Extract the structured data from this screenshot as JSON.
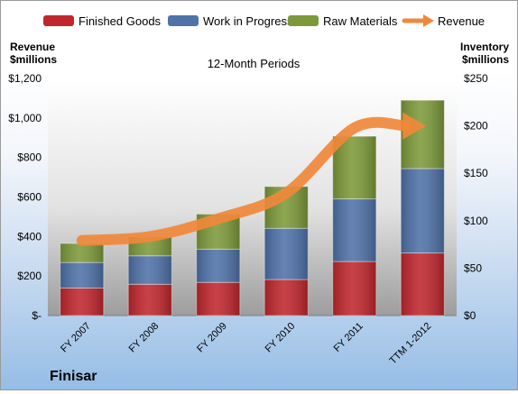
{
  "chart_data": {
    "type": "bar",
    "title": "12-Month Periods",
    "company": "Finisar",
    "y_left_label_line1": "Revenue",
    "y_left_label_line2": "$millions",
    "y_right_label_line1": "Inventory",
    "y_right_label_line2": "$millions",
    "categories": [
      "FY 2007",
      "FY 2008",
      "FY 2009",
      "FY 2010",
      "FY 2011",
      "TTM 1-2012"
    ],
    "series": [
      {
        "name": "Finished Goods",
        "kind": "stacked-bar",
        "axis": "right",
        "color": "#c0272d",
        "values": [
          29,
          33,
          35,
          38,
          57,
          66
        ]
      },
      {
        "name": "Work in Progress",
        "kind": "stacked-bar",
        "axis": "right",
        "color": "#4f72a8",
        "values": [
          27,
          30,
          35,
          54,
          66,
          89
        ]
      },
      {
        "name": "Raw Materials",
        "kind": "stacked-bar",
        "axis": "right",
        "color": "#7d9a3a",
        "values": [
          20,
          20,
          37,
          44,
          66,
          72
        ]
      },
      {
        "name": "Revenue",
        "kind": "line",
        "axis": "left",
        "color": "#f0883a",
        "values": [
          380,
          400,
          490,
          620,
          950,
          960
        ]
      }
    ],
    "y_left": {
      "min": 0,
      "max": 1200,
      "ticks": [
        "$-",
        "$200",
        "$400",
        "$600",
        "$800",
        "$1,000",
        "$1,200"
      ]
    },
    "y_right": {
      "min": 0,
      "max": 250,
      "ticks": [
        "$0",
        "$50",
        "$100",
        "$150",
        "$200",
        "$250"
      ]
    },
    "legend_position": "top",
    "grid": false
  }
}
